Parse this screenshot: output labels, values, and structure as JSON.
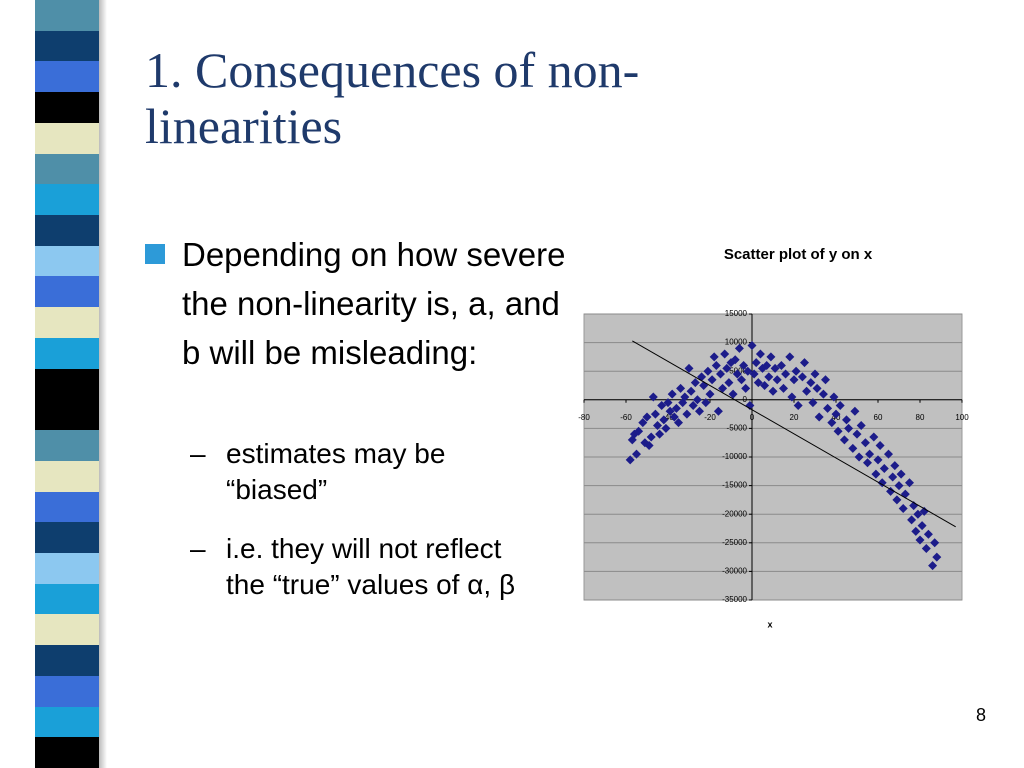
{
  "slide": {
    "title": "1. Consequences of non-linearities",
    "bullet": "Depending on how severe the non-linearity is, a, and b will be misleading:",
    "sub_bullets": [
      "estimates may be “biased”",
      "i.e. they will not reflect the “true” values of α, β"
    ],
    "page_number": "8"
  },
  "chart_data": {
    "type": "scatter",
    "title": "Scatter plot of y on x",
    "x_label": "x",
    "color": "#1c1c8a",
    "grid": true,
    "xlim": [
      -80,
      100
    ],
    "xticks": [
      -80,
      -60,
      -40,
      -20,
      0,
      20,
      40,
      60,
      80,
      100
    ],
    "ylim": [
      -35000,
      15000
    ],
    "yticks": [
      -35000,
      -30000,
      -25000,
      -20000,
      -15000,
      -10000,
      -5000,
      0,
      5000,
      10000,
      15000
    ],
    "x": [
      -58,
      -57,
      -56,
      -55,
      -54,
      -52,
      -51,
      -50,
      -49,
      -48,
      -47,
      -46,
      -45,
      -44,
      -43,
      -42,
      -41,
      -40,
      -39,
      -38,
      -37,
      -36,
      -35,
      -34,
      -33,
      -32,
      -31,
      -30,
      -29,
      -28,
      -27,
      -26,
      -25,
      -24,
      -23,
      -22,
      -21,
      -20,
      -19,
      -18,
      -17,
      -16,
      -15,
      -14,
      -13,
      -12,
      -11,
      -10,
      -9,
      -8,
      -7,
      -6,
      -5,
      -4,
      -3,
      -2,
      -1,
      0,
      1,
      2,
      3,
      4,
      5,
      6,
      7,
      8,
      9,
      10,
      11,
      12,
      14,
      15,
      16,
      18,
      19,
      20,
      21,
      22,
      24,
      25,
      26,
      28,
      29,
      30,
      31,
      32,
      34,
      35,
      36,
      38,
      39,
      40,
      41,
      42,
      44,
      45,
      46,
      48,
      49,
      50,
      51,
      52,
      54,
      55,
      56,
      58,
      59,
      60,
      61,
      62,
      63,
      65,
      66,
      67,
      68,
      69,
      70,
      71,
      72,
      73,
      75,
      76,
      77,
      78,
      79,
      80,
      81,
      82,
      83,
      84,
      86,
      87,
      88
    ],
    "values": [
      -10500,
      -7000,
      -6000,
      -9500,
      -5500,
      -4000,
      -7500,
      -3000,
      -8000,
      -6500,
      500,
      -2500,
      -4500,
      -6000,
      -1000,
      -3500,
      -5000,
      -500,
      -2000,
      1000,
      -3000,
      -1500,
      -4000,
      2000,
      -500,
      500,
      -2500,
      5500,
      1500,
      -1000,
      3000,
      0,
      -2000,
      4000,
      2500,
      -500,
      5000,
      1000,
      3500,
      7500,
      6000,
      -2000,
      4500,
      2000,
      8000,
      5500,
      3000,
      6500,
      1000,
      7000,
      4500,
      9000,
      3500,
      6000,
      2000,
      5000,
      -1000,
      9500,
      4500,
      6500,
      3000,
      8000,
      5500,
      2500,
      6000,
      4000,
      7500,
      1500,
      5500,
      3500,
      6000,
      2000,
      4500,
      7500,
      500,
      3500,
      5000,
      -1000,
      4000,
      6500,
      1500,
      3000,
      -500,
      4500,
      2000,
      -3000,
      1000,
      3500,
      -1500,
      -4000,
      500,
      -2500,
      -5500,
      -1000,
      -7000,
      -3500,
      -5000,
      -8500,
      -2000,
      -6000,
      -10000,
      -4500,
      -7500,
      -11000,
      -9500,
      -6500,
      -13000,
      -10500,
      -8000,
      -14500,
      -12000,
      -9500,
      -16000,
      -13500,
      -11500,
      -17500,
      -15000,
      -13000,
      -19000,
      -16500,
      -14500,
      -21000,
      -18500,
      -23000,
      -20000,
      -24500,
      -22000,
      -19500,
      -26000,
      -23500,
      -29000,
      -25000,
      -27500
    ],
    "trendline": {
      "x": [
        -57,
        97
      ],
      "y": [
        10300,
        -22200
      ]
    }
  }
}
